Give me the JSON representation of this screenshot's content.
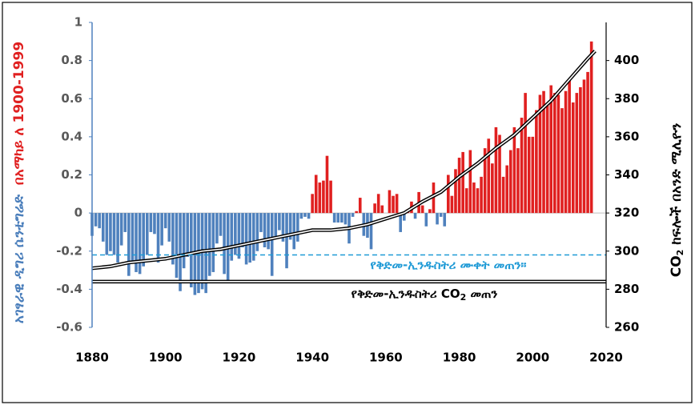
{
  "chart_data": {
    "type": "bar_line",
    "y_label_parts": [
      {
        "text": "አገፃራዊ ዲግሪ ሴንቲግሬድ",
        "color": "#4a7ebb"
      },
      {
        "text": "በአማካይ ለ 1900-1999",
        "color": "#e02020"
      }
    ],
    "y2_label": {
      "before": "CO",
      "sub": "2",
      "after": " ከፍሎች በአንድ ሚሊዮን"
    },
    "xlim": [
      1880,
      2020
    ],
    "xticks": [
      1880,
      1900,
      1920,
      1940,
      1960,
      1980,
      2000,
      2020
    ],
    "ylim": [
      -0.6,
      1
    ],
    "yticks": [
      -0.6,
      -0.4,
      -0.2,
      0,
      0.2,
      0.4,
      0.6,
      0.8,
      1
    ],
    "y2lim": [
      260,
      420
    ],
    "y2ticks": [
      260,
      280,
      300,
      320,
      340,
      360,
      380,
      400
    ],
    "series": [
      {
        "type": "bar",
        "negative_color": "#4f81bd",
        "positive_color": "#e02020",
        "x": [
          1880,
          1881,
          1882,
          1883,
          1884,
          1885,
          1886,
          1887,
          1888,
          1889,
          1890,
          1891,
          1892,
          1893,
          1894,
          1895,
          1896,
          1897,
          1898,
          1899,
          1900,
          1901,
          1902,
          1903,
          1904,
          1905,
          1906,
          1907,
          1908,
          1909,
          1910,
          1911,
          1912,
          1913,
          1914,
          1915,
          1916,
          1917,
          1918,
          1919,
          1920,
          1921,
          1922,
          1923,
          1924,
          1925,
          1926,
          1927,
          1928,
          1929,
          1930,
          1931,
          1932,
          1933,
          1934,
          1935,
          1936,
          1937,
          1938,
          1939,
          1940,
          1941,
          1942,
          1943,
          1944,
          1945,
          1946,
          1947,
          1948,
          1949,
          1950,
          1951,
          1952,
          1953,
          1954,
          1955,
          1956,
          1957,
          1958,
          1959,
          1960,
          1961,
          1962,
          1963,
          1964,
          1965,
          1966,
          1967,
          1968,
          1969,
          1970,
          1971,
          1972,
          1973,
          1974,
          1975,
          1976,
          1977,
          1978,
          1979,
          1980,
          1981,
          1982,
          1983,
          1984,
          1985,
          1986,
          1987,
          1988,
          1989,
          1990,
          1991,
          1992,
          1993,
          1994,
          1995,
          1996,
          1997,
          1998,
          1999,
          2000,
          2001,
          2002,
          2003,
          2004,
          2005,
          2006,
          2007,
          2008,
          2009,
          2010,
          2011,
          2012,
          2013,
          2014,
          2015,
          2016
        ],
        "values": [
          -0.12,
          -0.07,
          -0.08,
          -0.15,
          -0.22,
          -0.2,
          -0.22,
          -0.26,
          -0.17,
          -0.1,
          -0.33,
          -0.25,
          -0.31,
          -0.32,
          -0.28,
          -0.22,
          -0.1,
          -0.11,
          -0.26,
          -0.17,
          -0.08,
          -0.15,
          -0.27,
          -0.34,
          -0.41,
          -0.29,
          -0.23,
          -0.39,
          -0.43,
          -0.42,
          -0.4,
          -0.42,
          -0.33,
          -0.31,
          -0.16,
          -0.12,
          -0.32,
          -0.36,
          -0.25,
          -0.22,
          -0.24,
          -0.18,
          -0.27,
          -0.26,
          -0.25,
          -0.2,
          -0.1,
          -0.18,
          -0.19,
          -0.33,
          -0.13,
          -0.09,
          -0.15,
          -0.29,
          -0.14,
          -0.19,
          -0.15,
          -0.03,
          -0.02,
          -0.03,
          0.1,
          0.2,
          0.16,
          0.17,
          0.3,
          0.17,
          -0.05,
          -0.05,
          -0.05,
          -0.06,
          -0.16,
          -0.02,
          0.01,
          0.08,
          -0.12,
          -0.13,
          -0.19,
          0.05,
          0.1,
          0.04,
          0,
          0.12,
          0.09,
          0.1,
          -0.1,
          -0.04,
          0.02,
          0.06,
          -0.03,
          0.11,
          0.04,
          -0.07,
          0.02,
          0.16,
          -0.06,
          -0.02,
          -0.07,
          0.2,
          0.09,
          0.23,
          0.29,
          0.32,
          0.13,
          0.33,
          0.16,
          0.13,
          0.19,
          0.34,
          0.39,
          0.26,
          0.45,
          0.41,
          0.19,
          0.25,
          0.33,
          0.45,
          0.34,
          0.5,
          0.63,
          0.4,
          0.4,
          0.54,
          0.62,
          0.64,
          0.57,
          0.67,
          0.63,
          0.62,
          0.55,
          0.64,
          0.7,
          0.58,
          0.63,
          0.66,
          0.7,
          0.74,
          0.9
        ]
      },
      {
        "type": "line",
        "axis": "y2",
        "color": "#000000",
        "x": [
          1880,
          1885,
          1890,
          1895,
          1900,
          1905,
          1910,
          1915,
          1920,
          1925,
          1930,
          1935,
          1940,
          1945,
          1950,
          1955,
          1960,
          1965,
          1970,
          1975,
          1980,
          1985,
          1990,
          1995,
          2000,
          2005,
          2010,
          2015,
          2017
        ],
        "values": [
          291,
          292,
          294,
          295,
          296,
          298,
          300,
          301,
          303,
          305,
          307,
          309,
          311,
          311,
          312,
          314,
          317,
          320,
          326,
          331,
          339,
          346,
          354,
          361,
          370,
          379,
          390,
          401,
          405
        ]
      }
    ],
    "reference_lines": [
      {
        "value": -0.22,
        "color": "#1f9ad6",
        "style": "dashed",
        "label": "የቅድመ-ኢንዱስትሪ ሙቀት መጠን።"
      },
      {
        "axis": "y2",
        "value": 284,
        "color": "#000000",
        "style": "double",
        "label_before": "የቅድመ-ኢንዱስትሪ CO",
        "label_sub": "2",
        "label_after": " መጠን"
      }
    ]
  }
}
